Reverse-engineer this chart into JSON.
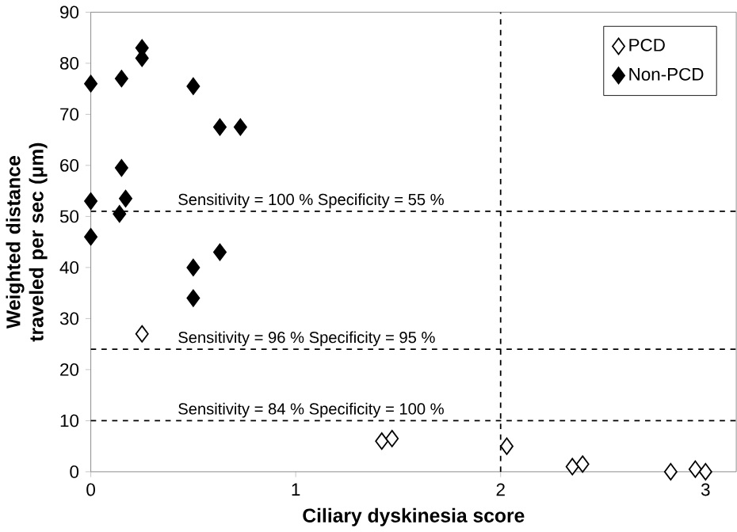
{
  "chart_data": {
    "type": "scatter",
    "xlabel": "Ciliary dyskinesia score",
    "ylabel": "Weighted distance traveled per sec (μm)",
    "xlim": [
      0,
      3.15
    ],
    "ylim": [
      0,
      90
    ],
    "xticks": [
      0,
      1,
      2,
      3
    ],
    "yticks": [
      0,
      10,
      20,
      30,
      40,
      50,
      60,
      70,
      80,
      90
    ],
    "legend": "top right",
    "grid": false,
    "series": [
      {
        "name": "PCD",
        "color": "#ffffff",
        "marker": "diamond",
        "x": [
          0.25,
          1.42,
          1.47,
          2.03,
          2.35,
          2.4,
          2.83,
          2.95,
          3.0
        ],
        "values": [
          27,
          6,
          6.5,
          5,
          1,
          1.5,
          0,
          0.5,
          0
        ]
      },
      {
        "name": "Non-PCD",
        "color": "#000000",
        "marker": "diamond",
        "x": [
          0,
          0,
          0,
          0.15,
          0.15,
          0.17,
          0.14,
          0.25,
          0.25,
          0.5,
          0.5,
          0.5,
          0.63,
          0.73,
          0.63
        ],
        "values": [
          76,
          53,
          46,
          77,
          59.5,
          53.5,
          50.5,
          81,
          83,
          75.5,
          40,
          34,
          67.5,
          67.5,
          43
        ]
      }
    ],
    "ref_lines": [
      {
        "axis": "y",
        "value": 51,
        "line_style": "dashed"
      },
      {
        "axis": "y",
        "value": 24,
        "line_style": "dashed"
      },
      {
        "axis": "y",
        "value": 10,
        "line_style": "dashed"
      },
      {
        "axis": "x",
        "value": 2,
        "line_style": "dashed"
      }
    ],
    "annotations": [
      {
        "text": "Sensitivity = 100 % Specificity = 55 %",
        "y": 51
      },
      {
        "text": "Sensitivity = 96 % Specificity = 95 %",
        "y": 24
      },
      {
        "text": "Sensitivity = 84 % Specificity = 100 %",
        "y": 10
      }
    ]
  }
}
